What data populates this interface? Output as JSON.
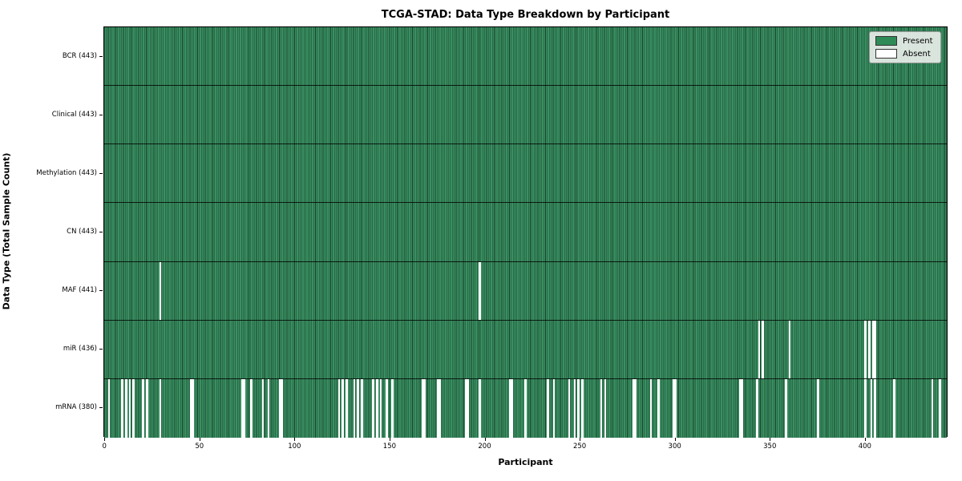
{
  "title": "TCGA-STAD: Data Type Breakdown by Participant",
  "colors": {
    "present": "#2e8b57",
    "present_fill": "#3a8f62",
    "bar_edge": "#16432a",
    "absent": "#ffffff",
    "background": "#ffffff",
    "legend_bg": "#eceeec"
  },
  "legend": {
    "items": [
      {
        "label": "Present",
        "color": "#2e8b57"
      },
      {
        "label": "Absent",
        "color": "#ffffff"
      }
    ]
  },
  "chart_data": {
    "type": "heatmap",
    "title": "TCGA-STAD: Data Type Breakdown by Participant",
    "xlabel": "Participant",
    "ylabel": "Data Type (Total Sample Count)",
    "legend": [
      "Present",
      "Absent"
    ],
    "legend_position": "upper right",
    "grid": false,
    "n_participants": 443,
    "xlim": [
      -0.5,
      443.5
    ],
    "x_ticks": [
      0,
      50,
      100,
      150,
      200,
      250,
      300,
      350,
      400
    ],
    "rows": [
      {
        "label": "BCR (443)",
        "name": "BCR",
        "present_count": 443,
        "absent_count": 0,
        "absent_participants": []
      },
      {
        "label": "Clinical (443)",
        "name": "Clinical",
        "present_count": 443,
        "absent_count": 0,
        "absent_participants": []
      },
      {
        "label": "Methylation (443)",
        "name": "Methylation",
        "present_count": 443,
        "absent_count": 0,
        "absent_participants": []
      },
      {
        "label": "CN (443)",
        "name": "CN",
        "present_count": 443,
        "absent_count": 0,
        "absent_participants": []
      },
      {
        "label": "MAF (441)",
        "name": "MAF",
        "present_count": 441,
        "absent_count": 2,
        "absent_participants": [
          29,
          197
        ]
      },
      {
        "label": "miR (436)",
        "name": "miR",
        "present_count": 436,
        "absent_count": 7,
        "absent_participants": [
          344,
          346,
          360,
          400,
          402,
          404,
          405
        ]
      },
      {
        "label": "mRNA (380)",
        "name": "mRNA",
        "present_count": 380,
        "absent_count": 63,
        "absent_participants": [
          2,
          9,
          11,
          13,
          15,
          20,
          22,
          29,
          45,
          46,
          72,
          73,
          77,
          83,
          86,
          92,
          93,
          123,
          125,
          127,
          131,
          133,
          135,
          141,
          143,
          145,
          148,
          151,
          167,
          168,
          175,
          176,
          190,
          191,
          197,
          213,
          214,
          221,
          233,
          236,
          244,
          247,
          249,
          251,
          261,
          263,
          278,
          279,
          287,
          291,
          299,
          300,
          334,
          335,
          343,
          358,
          375,
          400,
          403,
          405,
          415,
          435,
          439
        ]
      }
    ]
  }
}
